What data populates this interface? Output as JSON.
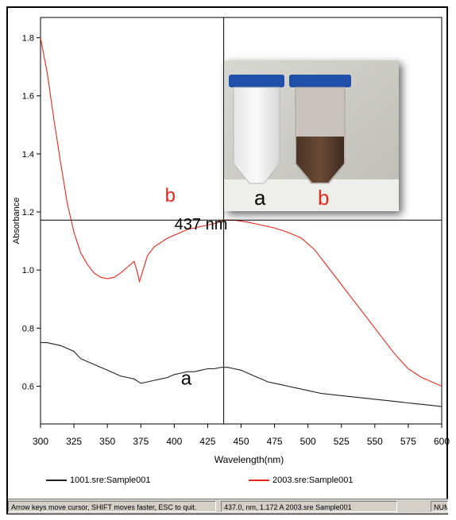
{
  "chart_data": {
    "type": "line",
    "xlabel": "Wavelength(nm)",
    "ylabel": "Absorbance",
    "xlim": [
      300,
      600
    ],
    "ylim": [
      0.47,
      1.87
    ],
    "x_ticks": [
      "300",
      "325",
      "350",
      "375",
      "400",
      "425",
      "450",
      "475",
      "500",
      "525",
      "550",
      "575",
      "600"
    ],
    "y_ticks": [
      "0.6",
      "0.8",
      "1.0",
      "1.2",
      "1.4",
      "1.6",
      "1.8"
    ],
    "grid": false,
    "legend_position": "bottom",
    "cursor": {
      "x": 437,
      "y": 1.172
    },
    "series": [
      {
        "name": "1001.sre:Sample001",
        "label": "a",
        "color": "#222222",
        "x": [
          300,
          305,
          310,
          315,
          320,
          325,
          330,
          335,
          340,
          345,
          350,
          355,
          360,
          365,
          370,
          375,
          380,
          385,
          390,
          395,
          400,
          405,
          410,
          415,
          420,
          425,
          430,
          435,
          440,
          445,
          450,
          455,
          460,
          465,
          470,
          475,
          480,
          485,
          490,
          495,
          500,
          510,
          520,
          530,
          540,
          550,
          560,
          570,
          580,
          590,
          600
        ],
        "y": [
          0.75,
          0.75,
          0.745,
          0.74,
          0.73,
          0.72,
          0.695,
          0.685,
          0.675,
          0.665,
          0.655,
          0.645,
          0.635,
          0.63,
          0.625,
          0.61,
          0.615,
          0.62,
          0.625,
          0.63,
          0.64,
          0.645,
          0.65,
          0.65,
          0.655,
          0.66,
          0.66,
          0.665,
          0.665,
          0.66,
          0.655,
          0.645,
          0.635,
          0.625,
          0.615,
          0.61,
          0.605,
          0.6,
          0.595,
          0.59,
          0.585,
          0.575,
          0.57,
          0.565,
          0.56,
          0.555,
          0.55,
          0.545,
          0.54,
          0.535,
          0.53
        ]
      },
      {
        "name": "2003.sre:Sample001",
        "label": "b",
        "color": "#e8281e",
        "x": [
          300,
          305,
          310,
          315,
          320,
          325,
          330,
          335,
          340,
          345,
          350,
          355,
          360,
          365,
          370,
          372,
          374,
          376,
          380,
          385,
          390,
          395,
          400,
          405,
          410,
          415,
          420,
          425,
          430,
          437,
          445,
          455,
          465,
          475,
          485,
          495,
          505,
          515,
          525,
          535,
          545,
          555,
          565,
          575,
          585,
          595,
          600
        ],
        "y": [
          1.8,
          1.68,
          1.52,
          1.37,
          1.23,
          1.13,
          1.06,
          1.02,
          0.99,
          0.975,
          0.97,
          0.975,
          0.99,
          1.01,
          1.03,
          1.0,
          0.96,
          0.99,
          1.05,
          1.08,
          1.095,
          1.11,
          1.12,
          1.13,
          1.14,
          1.145,
          1.15,
          1.155,
          1.16,
          1.172,
          1.172,
          1.165,
          1.155,
          1.145,
          1.13,
          1.11,
          1.07,
          1.01,
          0.95,
          0.89,
          0.83,
          0.77,
          0.71,
          0.66,
          0.63,
          0.61,
          0.6
        ]
      }
    ],
    "annotations": [
      {
        "text": "b",
        "x": 397,
        "y": 1.235,
        "color": "#e8281e"
      },
      {
        "text": "437 nm",
        "x": 420,
        "y": 1.14,
        "color": "#000000"
      },
      {
        "text": "a",
        "x": 409,
        "y": 0.605,
        "color": "#000000"
      }
    ]
  },
  "legend": {
    "items": [
      {
        "label": "1001.sre:Sample001",
        "color": "#222222"
      },
      {
        "label": "2003.sre:Sample001",
        "color": "#e8281e"
      }
    ]
  },
  "status_bar": {
    "hint": "Arrow keys move cursor, SHIFT moves faster, ESC to quit.",
    "cursor_readout": "437.0, nm, 1.172 A  2003.sre Sample001",
    "mode": "NUM"
  },
  "inset": {
    "label_a": "a",
    "label_b": "b",
    "label_b_color": "#e8281e",
    "cap_color": "#1f4fa8"
  }
}
